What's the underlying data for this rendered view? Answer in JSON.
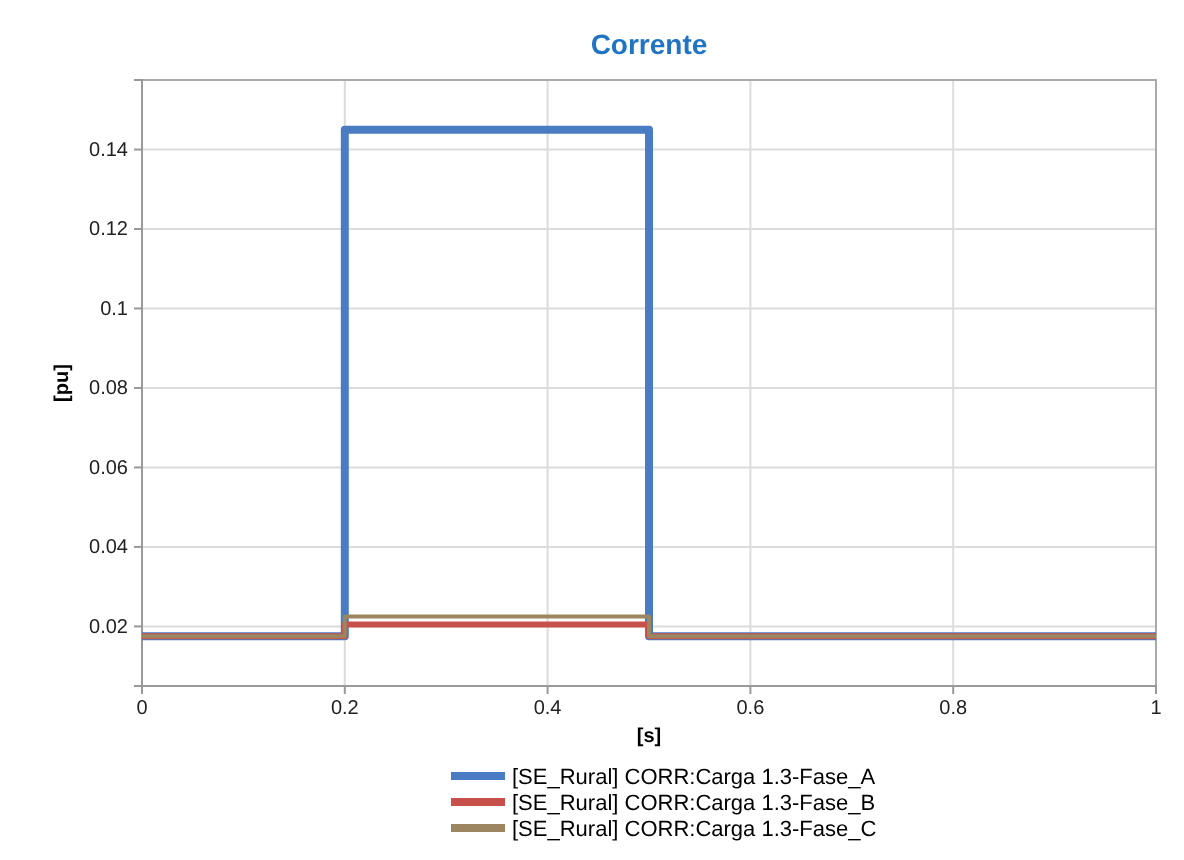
{
  "chart_data": {
    "type": "step",
    "title": "Corrente",
    "xlabel": "[s]",
    "ylabel": "[pu]",
    "xlim": [
      0,
      1
    ],
    "xticks": [
      0,
      0.2,
      0.4,
      0.6,
      0.8,
      1
    ],
    "ylim": [
      0.005,
      0.1575
    ],
    "yticks": [
      0.02,
      0.04,
      0.06,
      0.08,
      0.1,
      0.12,
      0.14
    ],
    "grid": true,
    "legend": "bottom",
    "line_style": "solid",
    "x": [
      0,
      0.2,
      0.5,
      1
    ],
    "series": [
      {
        "name": "[SE_Rural] CORR:Carga 1.3-Fase_A",
        "color": "#4a7cc4",
        "values": [
          0.0175,
          0.145,
          0.0175,
          0.0175
        ]
      },
      {
        "name": "[SE_Rural] CORR:Carga 1.3-Fase_B",
        "color": "#c8504a",
        "values": [
          0.0175,
          0.0205,
          0.0175,
          0.0175
        ]
      },
      {
        "name": "[SE_Rural] CORR:Carga 1.3-Fase_C",
        "color": "#9c8660",
        "values": [
          0.0175,
          0.0225,
          0.0175,
          0.0175
        ]
      }
    ]
  }
}
